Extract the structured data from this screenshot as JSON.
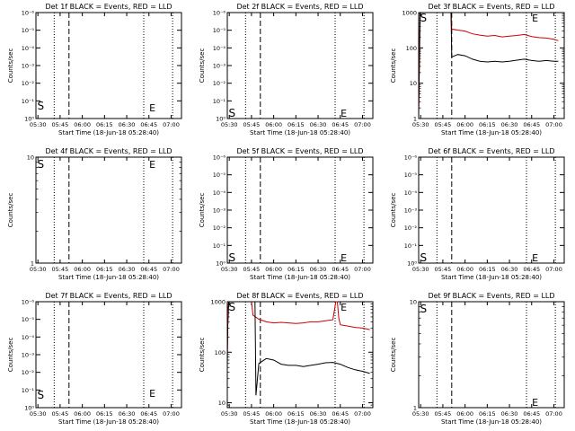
{
  "chart_data": [
    {
      "type": "line",
      "title": "Det 1f BLACK = Events, RED = LLD",
      "xlabel": "Start Time (18-Jun-18 05:28:40)",
      "ylabel": "Counts/sec",
      "x_ticks": [
        "05:30",
        "05:45",
        "06:00",
        "06:15",
        "06:30",
        "06:45",
        "07:00"
      ],
      "xlim": [
        "05:28:40",
        "07:07:00"
      ],
      "yscale": "log",
      "y_ticks": [
        "10⁻⁶",
        "10⁻⁵",
        "10⁻⁴",
        "10⁻³",
        "10⁻²",
        "10⁻¹",
        "10⁰"
      ],
      "y_tick_exponents": [
        -6,
        -5,
        -4,
        -3,
        -2,
        -1,
        0
      ],
      "ylim_exponent": [
        0,
        -6
      ],
      "marker_S": "S",
      "marker_E": "E",
      "series": []
    },
    {
      "type": "line",
      "title": "Det 2f BLACK = Events, RED = LLD",
      "xlabel": "Start Time (18-Jun-18 05:28:40)",
      "ylabel": "Counts/sec",
      "x_ticks": [
        "05:30",
        "05:45",
        "06:00",
        "06:15",
        "06:30",
        "06:45",
        "07:00"
      ],
      "xlim": [
        "05:28:40",
        "07:07:00"
      ],
      "yscale": "log",
      "y_ticks": [
        "10⁻⁶",
        "10⁻⁵",
        "10⁻⁴",
        "10⁻³",
        "10⁻²",
        "10⁻¹",
        "10⁰"
      ],
      "y_tick_exponents": [
        -6,
        -5,
        -4,
        -3,
        -2,
        -1,
        0
      ],
      "ylim_exponent": [
        0,
        -6
      ],
      "marker_S": "S",
      "marker_E": "E",
      "series": []
    },
    {
      "type": "line",
      "title": "Det 3f BLACK = Events, RED = LLD",
      "xlabel": "Start Time (18-Jun-18 05:28:40)",
      "ylabel": "Counts/sec",
      "x_ticks": [
        "05:30",
        "05:45",
        "06:00",
        "06:15",
        "06:30",
        "06:45",
        "07:00"
      ],
      "xlim": [
        "05:28:40",
        "07:07:00"
      ],
      "yscale": "log",
      "y_ticks": [
        "1",
        "10",
        "100",
        "1000"
      ],
      "y_tick_values": [
        1,
        10,
        100,
        1000
      ],
      "ylim": [
        1,
        1000
      ],
      "marker_S": "S",
      "marker_E": "E",
      "series": [
        {
          "name": "LLD",
          "color": "#cc0000",
          "x": [
            "05:28:40",
            "05:29:10",
            "05:29:40",
            "05:30:20",
            "05:31:00",
            "05:50:30",
            "05:51:00",
            "05:55:00",
            "06:00:00",
            "06:05:00",
            "06:10:00",
            "06:15:00",
            "06:20:00",
            "06:25:00",
            "06:30:00",
            "06:35:00",
            "06:40:00",
            "06:45:00",
            "06:50:00",
            "06:55:00",
            "07:00:00",
            "07:03:00"
          ],
          "y": [
            1.5,
            80,
            1000,
            1000,
            1000,
            1000,
            340,
            320,
            300,
            250,
            230,
            215,
            225,
            205,
            215,
            225,
            240,
            210,
            195,
            190,
            175,
            160
          ]
        },
        {
          "name": "Events",
          "color": "#000000",
          "x": [
            "05:28:40",
            "05:29:10",
            "05:29:40",
            "05:30:20",
            "05:31:00",
            "05:50:30",
            "05:51:00",
            "05:55:00",
            "06:00:00",
            "06:05:00",
            "06:10:00",
            "06:15:00",
            "06:20:00",
            "06:25:00",
            "06:30:00",
            "06:35:00",
            "06:40:00",
            "06:45:00",
            "06:50:00",
            "06:55:00",
            "07:00:00",
            "07:03:00"
          ],
          "y": [
            1.2,
            30,
            1000,
            1000,
            1000,
            1000,
            55,
            65,
            60,
            48,
            42,
            40,
            42,
            40,
            42,
            45,
            48,
            44,
            42,
            44,
            42,
            42
          ]
        }
      ]
    },
    {
      "type": "line",
      "title": "Det 4f BLACK = Events, RED = LLD",
      "xlabel": "Start Time (18-Jun-18 05:28:40)",
      "ylabel": "Counts/sec",
      "x_ticks": [
        "05:30",
        "05:45",
        "06:00",
        "06:15",
        "06:30",
        "06:45",
        "07:00"
      ],
      "xlim": [
        "05:28:40",
        "07:07:00"
      ],
      "yscale": "log",
      "y_ticks": [
        "1",
        "10"
      ],
      "y_tick_values": [
        1,
        10
      ],
      "ylim": [
        1,
        10
      ],
      "marker_S": "S",
      "marker_E": "E",
      "series": []
    },
    {
      "type": "line",
      "title": "Det 5f BLACK = Events, RED = LLD",
      "xlabel": "Start Time (18-Jun-18 05:28:40)",
      "ylabel": "Counts/sec",
      "x_ticks": [
        "05:30",
        "05:45",
        "06:00",
        "06:15",
        "06:30",
        "06:45",
        "07:00"
      ],
      "xlim": [
        "05:28:40",
        "07:07:00"
      ],
      "yscale": "log",
      "y_ticks": [
        "10⁻⁶",
        "10⁻⁵",
        "10⁻⁴",
        "10⁻³",
        "10⁻²",
        "10⁻¹",
        "10⁰"
      ],
      "y_tick_exponents": [
        -6,
        -5,
        -4,
        -3,
        -2,
        -1,
        0
      ],
      "ylim_exponent": [
        0,
        -6
      ],
      "marker_S": "S",
      "marker_E": "E",
      "series": []
    },
    {
      "type": "line",
      "title": "Det 6f BLACK = Events, RED = LLD",
      "xlabel": "Start Time (18-Jun-18 05:28:40)",
      "ylabel": "Counts/sec",
      "x_ticks": [
        "05:30",
        "05:45",
        "06:00",
        "06:15",
        "06:30",
        "06:45",
        "07:00"
      ],
      "xlim": [
        "05:28:40",
        "07:07:00"
      ],
      "yscale": "log",
      "y_ticks": [
        "10⁻⁶",
        "10⁻⁵",
        "10⁻⁴",
        "10⁻³",
        "10⁻²",
        "10⁻¹",
        "10⁰"
      ],
      "y_tick_exponents": [
        -6,
        -5,
        -4,
        -3,
        -2,
        -1,
        0
      ],
      "ylim_exponent": [
        0,
        -6
      ],
      "marker_S": "S",
      "marker_E": "E",
      "series": []
    },
    {
      "type": "line",
      "title": "Det 7f BLACK = Events, RED = LLD",
      "xlabel": "Start Time (18-Jun-18 05:28:40)",
      "ylabel": "Counts/sec",
      "x_ticks": [
        "05:30",
        "05:45",
        "06:00",
        "06:15",
        "06:30",
        "06:45",
        "07:00"
      ],
      "xlim": [
        "05:28:40",
        "07:07:00"
      ],
      "yscale": "log",
      "y_ticks": [
        "10⁻⁶",
        "10⁻⁵",
        "10⁻⁴",
        "10⁻³",
        "10⁻²",
        "10⁻¹",
        "10⁰"
      ],
      "y_tick_exponents": [
        -6,
        -5,
        -4,
        -3,
        -2,
        -1,
        0
      ],
      "ylim_exponent": [
        0,
        -6
      ],
      "marker_S": "S",
      "marker_E": "E",
      "series": []
    },
    {
      "type": "line",
      "title": "Det 8f BLACK = Events, RED = LLD",
      "xlabel": "Start Time (18-Jun-18 05:28:40)",
      "ylabel": "Counts/sec",
      "x_ticks": [
        "05:30",
        "05:45",
        "06:00",
        "06:15",
        "06:30",
        "06:45",
        "07:00"
      ],
      "xlim": [
        "05:28:40",
        "07:07:00"
      ],
      "yscale": "log",
      "y_ticks": [
        "10",
        "100",
        "1000"
      ],
      "y_tick_values": [
        10,
        100,
        1000
      ],
      "ylim": [
        8,
        1000
      ],
      "marker_S": "S",
      "marker_E": "E",
      "series": [
        {
          "name": "LLD",
          "color": "#cc0000",
          "x": [
            "05:28:40",
            "05:29:00",
            "05:29:40",
            "05:30:20",
            "05:45:00",
            "05:46:00",
            "05:50:00",
            "05:55:00",
            "06:00:00",
            "06:05:00",
            "06:10:00",
            "06:15:00",
            "06:20:00",
            "06:25:00",
            "06:30:00",
            "06:35:00",
            "06:40:00",
            "06:42:00",
            "06:43:00",
            "06:44:00",
            "06:45:00",
            "06:50:00",
            "06:55:00",
            "07:00:00",
            "07:05:00"
          ],
          "y": [
            100,
            600,
            1000,
            1000,
            1000,
            540,
            450,
            400,
            380,
            390,
            380,
            370,
            380,
            400,
            400,
            420,
            440,
            1000,
            1000,
            470,
            350,
            330,
            310,
            300,
            280
          ]
        },
        {
          "name": "Events",
          "color": "#000000",
          "x": [
            "05:28:40",
            "05:29:00",
            "05:29:40",
            "05:30:20",
            "05:47:20",
            "05:48:00",
            "05:50:00",
            "05:55:00",
            "06:00:00",
            "06:05:00",
            "06:10:00",
            "06:15:00",
            "06:20:00",
            "06:25:00",
            "06:30:00",
            "06:35:00",
            "06:40:00",
            "06:45:00",
            "06:50:00",
            "06:55:00",
            "07:00:00",
            "07:05:00"
          ],
          "y": [
            50,
            300,
            1000,
            1000,
            1000,
            14,
            60,
            75,
            70,
            58,
            55,
            55,
            52,
            55,
            58,
            62,
            63,
            58,
            50,
            45,
            42,
            38
          ]
        }
      ]
    },
    {
      "type": "line",
      "title": "Det 9f BLACK = Events, RED = LLD",
      "xlabel": "Start Time (18-Jun-18 05:28:40)",
      "ylabel": "Counts/sec",
      "x_ticks": [
        "05:30",
        "05:45",
        "06:00",
        "06:15",
        "06:30",
        "06:45",
        "07:00"
      ],
      "xlim": [
        "05:28:40",
        "07:07:00"
      ],
      "yscale": "log",
      "y_ticks": [
        "1",
        "10"
      ],
      "y_tick_values": [
        1,
        10
      ],
      "ylim": [
        1,
        10
      ],
      "marker_S": "S",
      "marker_E": "E",
      "series": []
    }
  ]
}
